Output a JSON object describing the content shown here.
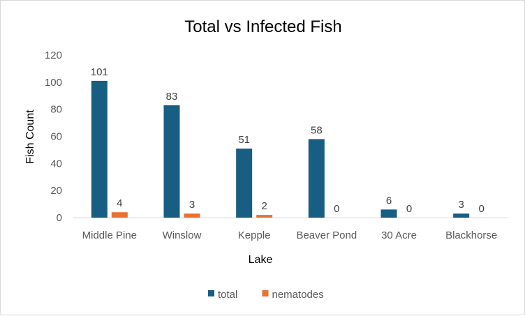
{
  "chart_data": {
    "type": "bar",
    "title": "Total vs Infected Fish",
    "xlabel": "Lake",
    "ylabel": "Fish Count",
    "categories": [
      "Middle Pine",
      "Winslow",
      "Kepple",
      "Beaver Pond",
      "30 Acre",
      "Blackhorse"
    ],
    "series": [
      {
        "name": "total",
        "values": [
          101,
          83,
          51,
          58,
          6,
          3
        ],
        "color": "#175E82"
      },
      {
        "name": "nematodes",
        "values": [
          4,
          3,
          2,
          0,
          0,
          0
        ],
        "color": "#E97132"
      }
    ],
    "ylim": [
      0,
      120
    ],
    "yticks": [
      0,
      20,
      40,
      60,
      80,
      100,
      120
    ],
    "grid": false,
    "data_labels": true,
    "legend_position": "bottom"
  }
}
